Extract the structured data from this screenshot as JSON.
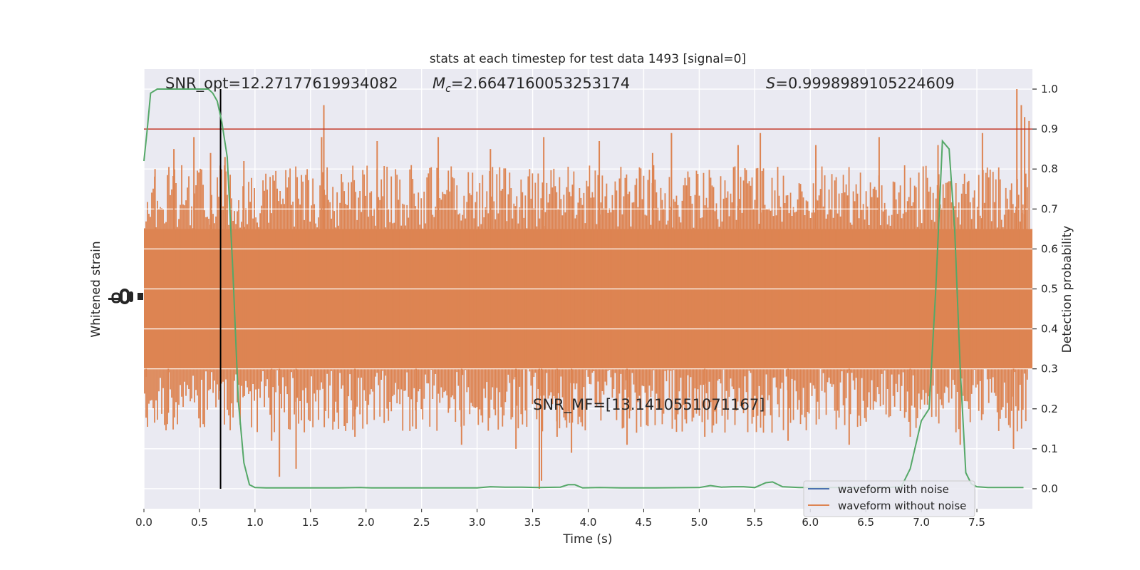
{
  "chart_data": {
    "type": "line",
    "title": "stats at each timestep for test data 1493 [signal=0]",
    "xlabel": "Time (s)",
    "ylabel_left": "Whitened strain",
    "ylabel_right": "Detection probability",
    "xlim": [
      0,
      8
    ],
    "ylim_right": [
      -0.05,
      1.05
    ],
    "x_ticks": [
      "0.0",
      "0.5",
      "1.0",
      "1.5",
      "2.0",
      "2.5",
      "3.0",
      "3.5",
      "4.0",
      "4.5",
      "5.0",
      "5.5",
      "6.0",
      "6.5",
      "7.0",
      "7.5"
    ],
    "right_ticks": [
      "0.0",
      "0.1",
      "0.2",
      "0.3",
      "0.4",
      "0.5",
      "0.6",
      "0.7",
      "0.8",
      "0.9",
      "1.0"
    ],
    "annotations": {
      "snr_opt": "SNR_opt=12.27177619934082",
      "mc": "=2.6647160053253174",
      "s": "=0.9998989105224609",
      "snr_mf": "SNR_MF=[13.1410551071167]"
    },
    "threshold": {
      "value": 0.9,
      "color": "#c0392b"
    },
    "marker_time": 0.69,
    "legend": {
      "placement": "lower-right",
      "entries": [
        {
          "label": "waveform with noise",
          "color": "#4c72b0"
        },
        {
          "label": "waveform without noise",
          "color": "#dd8452"
        }
      ]
    },
    "strain_band": {
      "color": "#dd8452",
      "core_low": 0.3,
      "core_high": 0.65,
      "description_range": [
        0.0,
        1.0
      ]
    },
    "detection_probability": {
      "color": "#55a868",
      "x": [
        0.0,
        0.03,
        0.06,
        0.12,
        0.2,
        0.3,
        0.4,
        0.5,
        0.58,
        0.62,
        0.66,
        0.7,
        0.75,
        0.8,
        0.85,
        0.9,
        0.95,
        1.0,
        1.1,
        1.3,
        1.5,
        1.75,
        1.95,
        2.05,
        2.5,
        2.75,
        3.0,
        3.12,
        3.25,
        3.4,
        3.55,
        3.75,
        3.82,
        3.88,
        3.95,
        4.1,
        4.3,
        4.6,
        5.0,
        5.1,
        5.2,
        5.3,
        5.4,
        5.5,
        5.6,
        5.66,
        5.75,
        5.9,
        6.1,
        6.3,
        6.5,
        6.7,
        6.82,
        6.9,
        7.0,
        7.07,
        7.13,
        7.19,
        7.25,
        7.3,
        7.35,
        7.4,
        7.45,
        7.5,
        7.6,
        7.7,
        7.8,
        7.92
      ],
      "values": [
        0.82,
        0.9,
        0.99,
        1.0,
        1.0,
        1.0,
        1.0,
        1.0,
        1.0,
        0.99,
        0.97,
        0.92,
        0.83,
        0.55,
        0.22,
        0.065,
        0.01,
        0.003,
        0.002,
        0.002,
        0.002,
        0.002,
        0.003,
        0.002,
        0.002,
        0.002,
        0.002,
        0.005,
        0.004,
        0.004,
        0.003,
        0.004,
        0.01,
        0.01,
        0.002,
        0.003,
        0.002,
        0.002,
        0.003,
        0.008,
        0.004,
        0.005,
        0.005,
        0.003,
        0.015,
        0.017,
        0.005,
        0.003,
        0.003,
        0.003,
        0.003,
        0.003,
        0.005,
        0.05,
        0.17,
        0.2,
        0.5,
        0.87,
        0.85,
        0.65,
        0.3,
        0.04,
        0.012,
        0.005,
        0.003,
        0.003,
        0.003,
        0.003
      ]
    },
    "strain_spikes": {
      "x": [
        0.02,
        0.1,
        0.22,
        0.27,
        0.45,
        0.6,
        0.73,
        0.9,
        1.15,
        1.22,
        1.37,
        1.6,
        1.62,
        1.9,
        2.1,
        2.45,
        2.65,
        2.86,
        3.12,
        3.35,
        3.56,
        3.58,
        3.6,
        3.72,
        3.85,
        4.1,
        4.35,
        4.58,
        4.75,
        5.05,
        5.35,
        5.55,
        5.8,
        6.05,
        6.35,
        6.62,
        6.9,
        7.15,
        7.35,
        7.55,
        7.83,
        7.86,
        7.9,
        7.93,
        7.97
      ],
      "values": [
        0.28,
        0.8,
        0.19,
        0.85,
        0.88,
        0.84,
        0.83,
        0.82,
        0.12,
        0.03,
        0.05,
        0.88,
        0.96,
        0.13,
        0.87,
        0.15,
        0.88,
        0.11,
        0.85,
        0.1,
        0.0,
        0.02,
        0.88,
        0.13,
        0.09,
        0.87,
        0.11,
        0.84,
        0.89,
        0.13,
        0.86,
        0.89,
        0.12,
        0.86,
        0.11,
        0.88,
        0.13,
        0.86,
        0.11,
        0.89,
        0.1,
        1.0,
        0.96,
        0.93,
        0.92
      ]
    },
    "grid": true,
    "background": "#eaeaf2"
  }
}
